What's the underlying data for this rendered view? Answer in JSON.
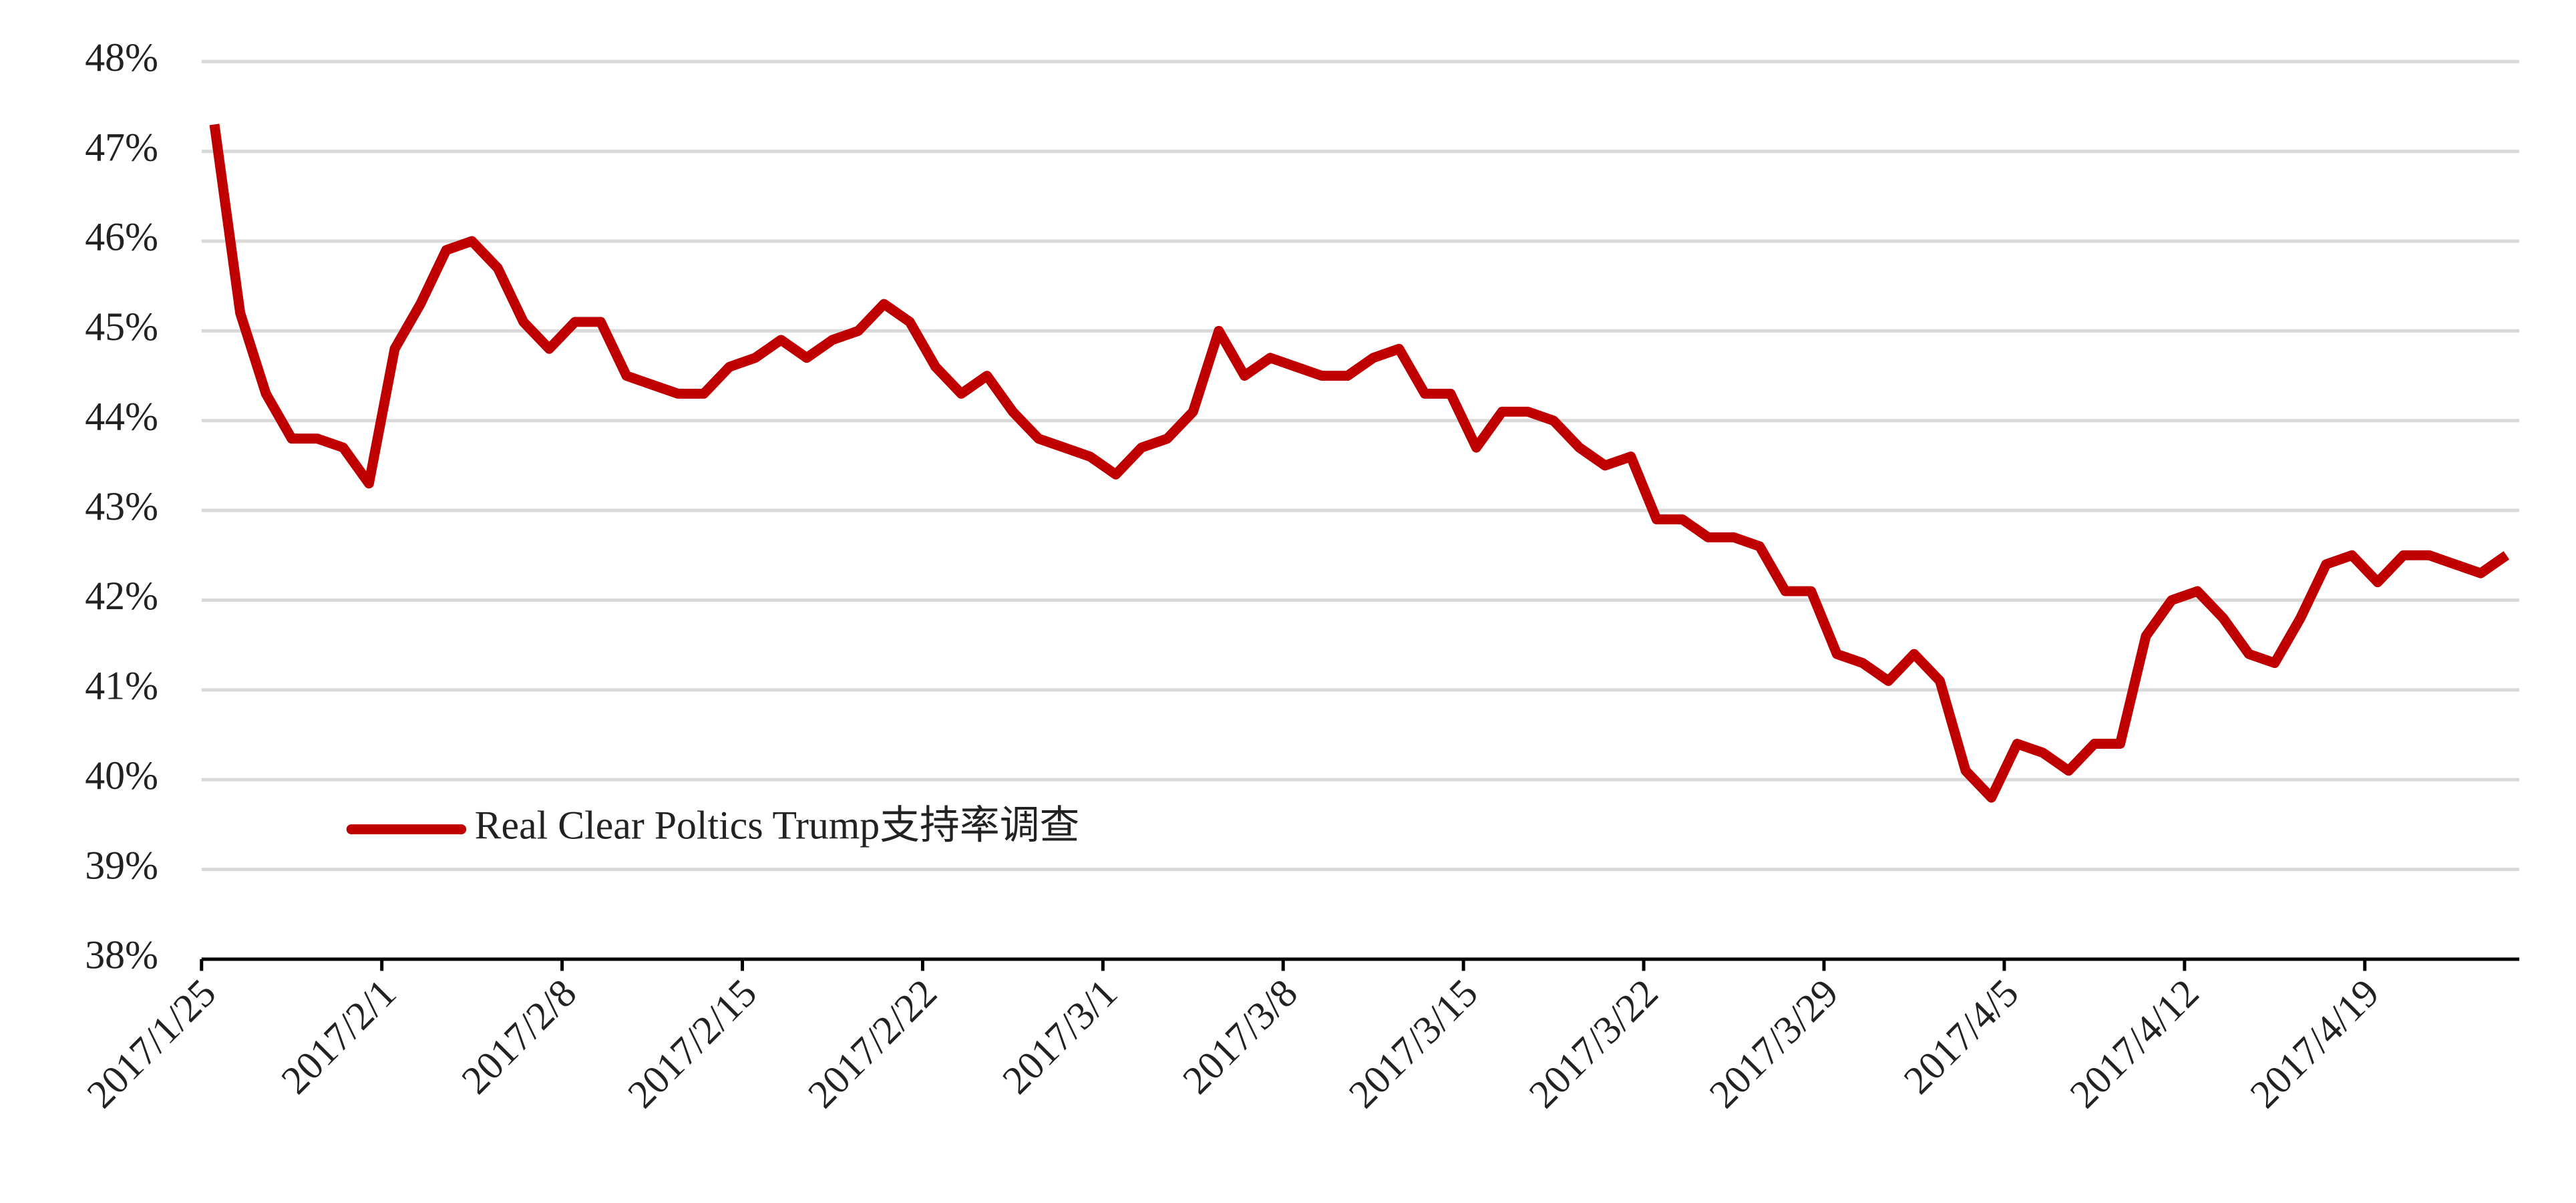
{
  "chart_data": {
    "type": "line",
    "categories": [
      "2017/1/25",
      null,
      null,
      null,
      null,
      null,
      null,
      "2017/2/1",
      null,
      null,
      null,
      null,
      null,
      null,
      "2017/2/8",
      null,
      null,
      null,
      null,
      null,
      null,
      "2017/2/15",
      null,
      null,
      null,
      null,
      null,
      null,
      "2017/2/22",
      null,
      null,
      null,
      null,
      null,
      null,
      "2017/3/1",
      null,
      null,
      null,
      null,
      null,
      null,
      "2017/3/8",
      null,
      null,
      null,
      null,
      null,
      null,
      "2017/3/15",
      null,
      null,
      null,
      null,
      null,
      null,
      "2017/3/22",
      null,
      null,
      null,
      null,
      null,
      null,
      "2017/3/29",
      null,
      null,
      null,
      null,
      null,
      null,
      "2017/4/5",
      null,
      null,
      null,
      null,
      null,
      null,
      "2017/4/12",
      null,
      null,
      null,
      null,
      null,
      null,
      "2017/4/19",
      null,
      null,
      null,
      null,
      null
    ],
    "series": [
      {
        "name": "Real Clear Poltics Trump支持率调查",
        "color": "#c00000",
        "values": [
          47.3,
          45.2,
          44.3,
          43.8,
          43.8,
          43.7,
          43.3,
          44.8,
          45.3,
          45.9,
          46.0,
          45.7,
          45.1,
          44.8,
          45.1,
          45.1,
          44.5,
          44.4,
          44.3,
          44.3,
          44.6,
          44.7,
          44.9,
          44.7,
          44.9,
          45.0,
          45.3,
          45.1,
          44.6,
          44.3,
          44.5,
          44.1,
          43.8,
          43.7,
          43.6,
          43.4,
          43.7,
          43.8,
          44.1,
          45.0,
          44.5,
          44.7,
          44.6,
          44.5,
          44.5,
          44.7,
          44.8,
          44.3,
          44.3,
          43.7,
          44.1,
          44.1,
          44.0,
          43.7,
          43.5,
          43.6,
          42.9,
          42.9,
          42.7,
          42.7,
          42.6,
          42.1,
          42.1,
          41.4,
          41.3,
          41.1,
          41.4,
          41.1,
          40.1,
          39.8,
          40.4,
          40.3,
          40.1,
          40.4,
          40.4,
          41.6,
          42.0,
          42.1,
          41.8,
          41.4,
          41.3,
          41.8,
          42.4,
          42.5,
          42.2,
          42.5,
          42.5,
          42.4,
          42.3,
          42.5
        ]
      }
    ],
    "ylim": [
      38,
      48
    ],
    "yticks": [
      {
        "value": 38,
        "label": "38%"
      },
      {
        "value": 39,
        "label": "39%"
      },
      {
        "value": 40,
        "label": "40%"
      },
      {
        "value": 41,
        "label": "41%"
      },
      {
        "value": 42,
        "label": "42%"
      },
      {
        "value": 43,
        "label": "43%"
      },
      {
        "value": 44,
        "label": "44%"
      },
      {
        "value": 45,
        "label": "45%"
      },
      {
        "value": 46,
        "label": "46%"
      },
      {
        "value": 47,
        "label": "47%"
      },
      {
        "value": 48,
        "label": "48%"
      }
    ],
    "grid": true,
    "legend": "lower left"
  }
}
